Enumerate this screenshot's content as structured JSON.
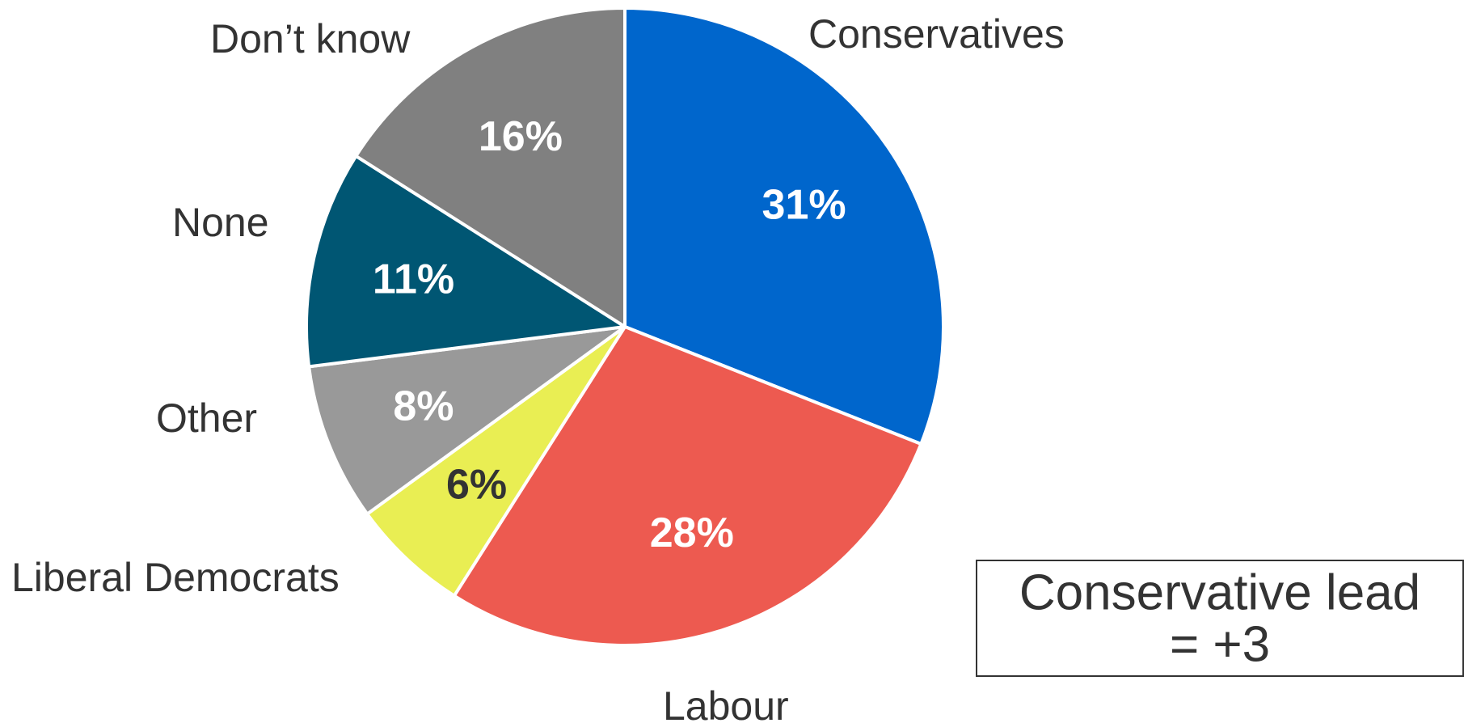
{
  "chart_data": {
    "type": "pie",
    "title": "",
    "start_angle_deg": 0,
    "direction": "clockwise",
    "slices": [
      {
        "category": "Conservatives",
        "value": 31,
        "label": "31%",
        "color": "#0066cc",
        "label_color": "#ffffff"
      },
      {
        "category": "Labour",
        "value": 28,
        "label": "28%",
        "color": "#ed5a50",
        "label_color": "#ffffff"
      },
      {
        "category": "Liberal Democrats",
        "value": 6,
        "label": "6%",
        "color": "#e9ee53",
        "label_color": "#333333"
      },
      {
        "category": "Other",
        "value": 8,
        "label": "8%",
        "color": "#999999",
        "label_color": "#ffffff"
      },
      {
        "category": "None",
        "value": 11,
        "label": "11%",
        "color": "#005673",
        "label_color": "#ffffff"
      },
      {
        "category": "Don’t know",
        "value": 16,
        "label": "16%",
        "color": "#808080",
        "label_color": "#ffffff"
      }
    ],
    "annotation": {
      "lines": [
        "Conservative lead",
        "= +3"
      ]
    }
  }
}
